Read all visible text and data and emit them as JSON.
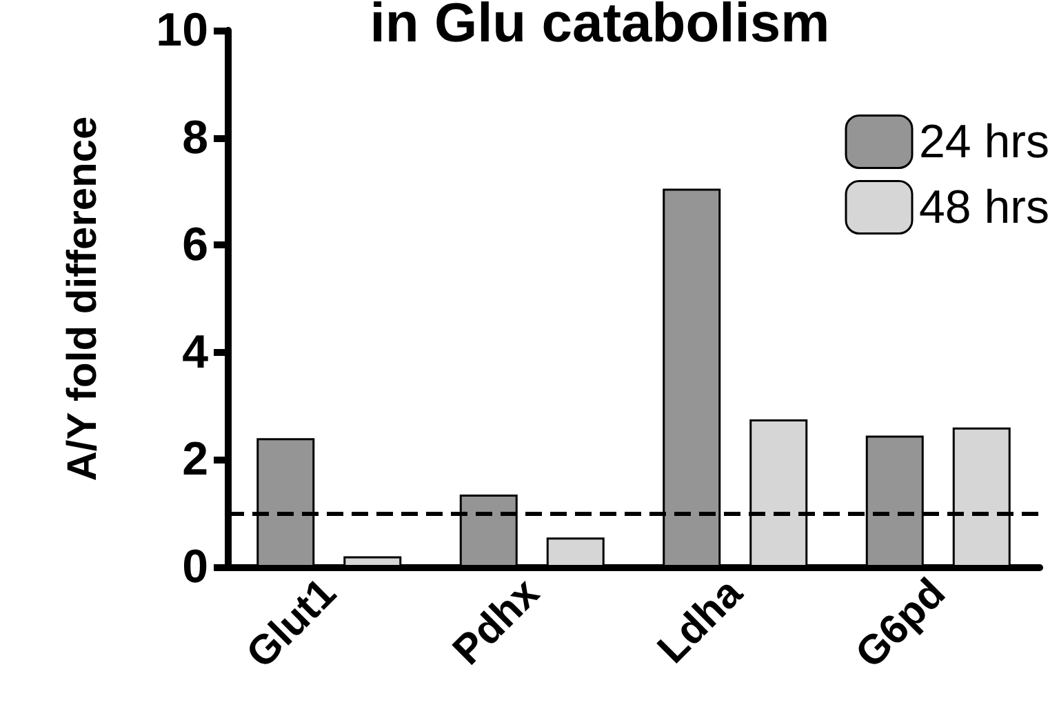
{
  "chart_data": {
    "type": "bar",
    "title": "in Glu catabolism",
    "ylabel": "A/Y fold difference",
    "categories": [
      "Glut1",
      "Pdhx",
      "Ldha",
      "G6pd"
    ],
    "series": [
      {
        "name": "24 hrs",
        "color": "#959595",
        "values": [
          2.4,
          1.35,
          7.05,
          2.45
        ]
      },
      {
        "name": "48 hrs",
        "color": "#d6d6d6",
        "values": [
          0.2,
          0.55,
          2.75,
          2.6
        ]
      }
    ],
    "ylim": [
      0,
      10
    ],
    "yticks": [
      0,
      2,
      4,
      6,
      8,
      10
    ],
    "grid": false,
    "legend": "top right",
    "ref_lines": [
      {
        "axis": "y",
        "value": 1,
        "line_style": "dashed",
        "color": "#000000"
      }
    ]
  }
}
